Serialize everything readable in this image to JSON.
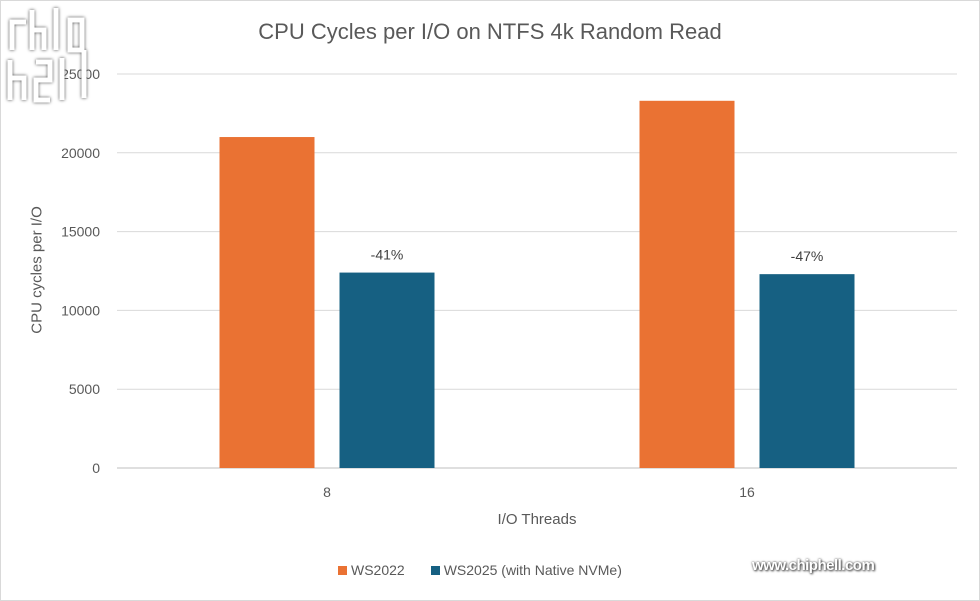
{
  "chart_data": {
    "type": "bar",
    "title": "CPU Cycles per I/O on NTFS 4k Random Read",
    "xlabel": "I/O Threads",
    "ylabel": "CPU cycles per I/O",
    "categories": [
      "8",
      "16"
    ],
    "series": [
      {
        "name": "WS2022",
        "color": "#ea7233",
        "values": [
          21000,
          23300
        ]
      },
      {
        "name": "WS2025 (with Native NVMe)",
        "color": "#166082",
        "values": [
          12400,
          12300
        ],
        "labels": [
          "-41%",
          "-47%"
        ]
      }
    ],
    "ylim": [
      0,
      25000
    ],
    "yticks": [
      "0",
      "5000",
      "10000",
      "15000",
      "20000",
      "25000"
    ],
    "grid": true,
    "legend": "bottom"
  },
  "watermark": {
    "text": "www.chiphell.com",
    "logo": "chip hell"
  }
}
